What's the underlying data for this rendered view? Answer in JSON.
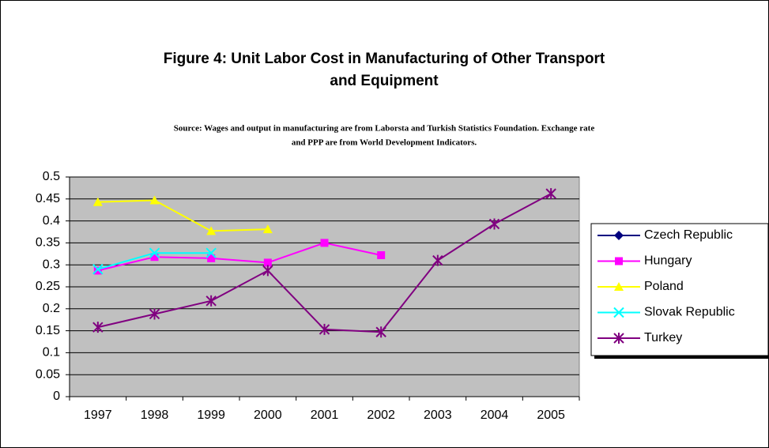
{
  "chart_data": {
    "type": "line",
    "title": [
      "Figure 4: Unit Labor Cost in Manufacturing of Other Transport",
      "and Equipment"
    ],
    "subtitle": [
      "Source: Wages and output in manufacturing are from Laborsta and Turkish Statistics Foundation. Exchange rate",
      "and PPP are from World Development Indicators."
    ],
    "categories": [
      "1997",
      "1998",
      "1999",
      "2000",
      "2001",
      "2002",
      "2003",
      "2004",
      "2005"
    ],
    "series": [
      {
        "name": "Czech Republic",
        "color": "#000080",
        "marker": "diamond",
        "values": [
          null,
          null,
          null,
          null,
          null,
          null,
          null,
          null,
          null
        ]
      },
      {
        "name": "Hungary",
        "color": "#ff00ff",
        "marker": "square",
        "values": [
          0.287,
          0.318,
          0.315,
          0.305,
          0.35,
          0.322,
          null,
          null,
          null
        ]
      },
      {
        "name": "Poland",
        "color": "#ffff00",
        "marker": "triangle",
        "values": [
          0.443,
          0.447,
          0.377,
          0.381,
          null,
          null,
          null,
          null,
          null
        ]
      },
      {
        "name": "Slovak Republic",
        "color": "#00ffff",
        "marker": "x",
        "values": [
          0.29,
          0.327,
          0.327,
          null,
          null,
          null,
          null,
          null,
          null
        ]
      },
      {
        "name": "Turkey",
        "color": "#800080",
        "marker": "star",
        "values": [
          0.158,
          0.188,
          0.218,
          0.287,
          0.153,
          0.147,
          0.31,
          0.393,
          0.462
        ]
      }
    ],
    "ylim": [
      0,
      0.5
    ],
    "yticks": [
      0,
      0.05,
      0.1,
      0.15,
      0.2,
      0.25,
      0.3,
      0.35,
      0.4,
      0.45,
      0.5
    ],
    "grid": true,
    "legend": "right"
  }
}
